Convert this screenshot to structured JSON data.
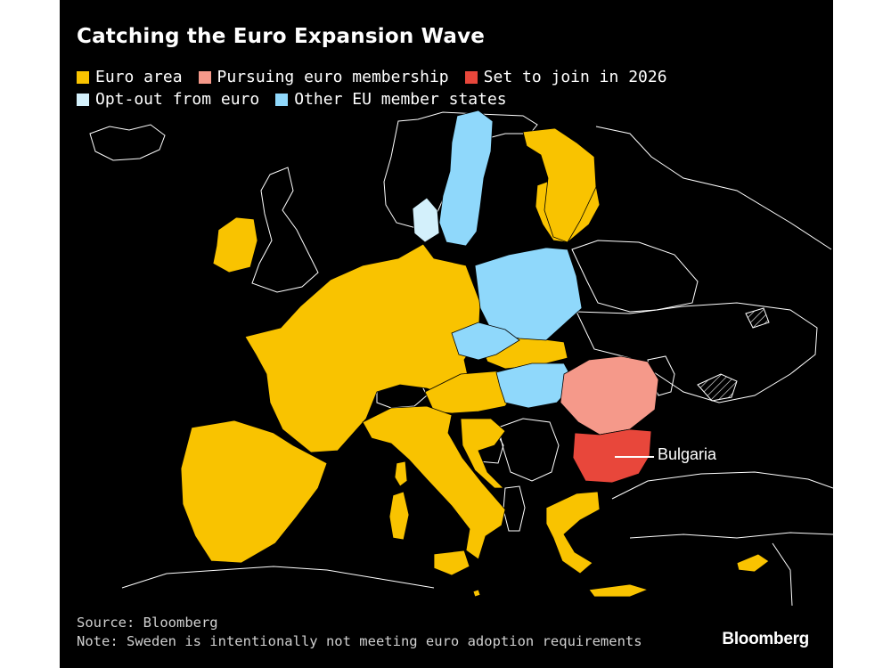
{
  "title": "Catching the Euro Expansion Wave",
  "legend": [
    {
      "label": "Euro area",
      "color": "#f9c300"
    },
    {
      "label": "Pursuing euro membership",
      "color": "#f5998a"
    },
    {
      "label": "Set to join in 2026",
      "color": "#e8473b"
    },
    {
      "label": "Opt-out from euro",
      "color": "#d3f0fb"
    },
    {
      "label": "Other EU member states",
      "color": "#8fd8fb"
    }
  ],
  "colors": {
    "background": "#000000",
    "non_eu_land": "#000000",
    "border": "#ffffff"
  },
  "callout": {
    "label": "Bulgaria"
  },
  "source": "Source: Bloomberg",
  "note": "Note: Sweden is intentionally not meeting euro adoption requirements",
  "brand": "Bloomberg"
}
